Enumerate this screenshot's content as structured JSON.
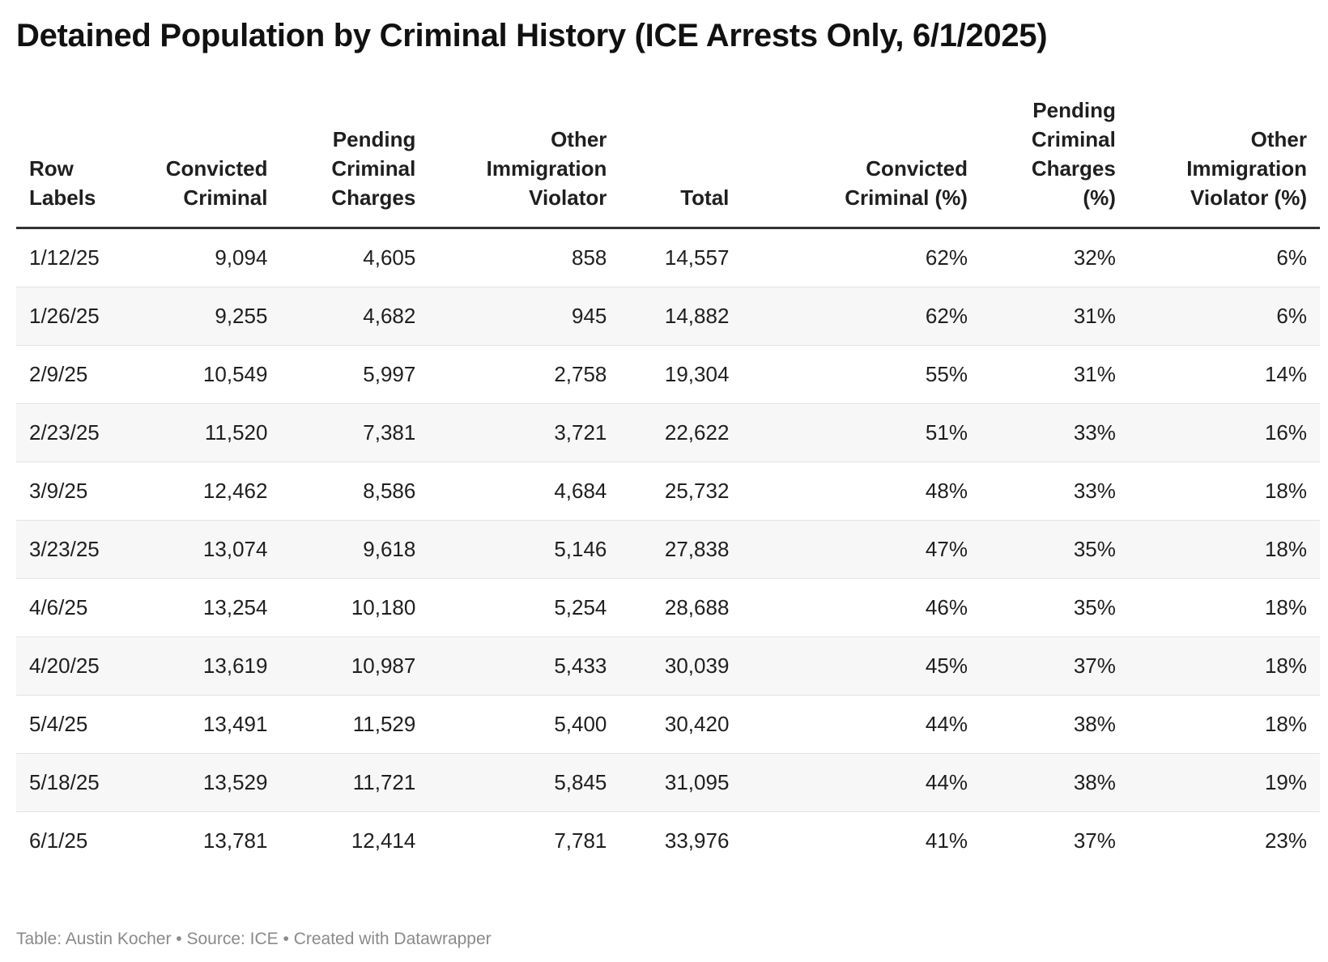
{
  "chart_data": {
    "type": "table",
    "title": "Detained Population by Criminal History (ICE Arrests Only, 6/1/2025)",
    "columns": [
      {
        "key": "label",
        "header": [
          "Row",
          "Labels"
        ],
        "align": "l"
      },
      {
        "key": "convicted",
        "header": [
          "Convicted",
          "Criminal"
        ],
        "align": "r"
      },
      {
        "key": "pending",
        "header": [
          "Pending",
          "Criminal",
          "Charges"
        ],
        "align": "r"
      },
      {
        "key": "other",
        "header": [
          "Other",
          "Immigration",
          "Violator"
        ],
        "align": "r"
      },
      {
        "key": "total",
        "header": [
          "Total"
        ],
        "align": "r"
      },
      {
        "key": "convicted_pct",
        "header": [
          "Convicted",
          "Criminal (%)"
        ],
        "align": "r"
      },
      {
        "key": "pending_pct",
        "header": [
          "Pending",
          "Criminal",
          "Charges",
          "(%)"
        ],
        "align": "r"
      },
      {
        "key": "other_pct",
        "header": [
          "Other",
          "Immigration",
          "Violator (%)"
        ],
        "align": "r"
      }
    ],
    "rows": [
      [
        "1/12/25",
        "9,094",
        "4,605",
        "858",
        "14,557",
        "62%",
        "32%",
        "6%"
      ],
      [
        "1/26/25",
        "9,255",
        "4,682",
        "945",
        "14,882",
        "62%",
        "31%",
        "6%"
      ],
      [
        "2/9/25",
        "10,549",
        "5,997",
        "2,758",
        "19,304",
        "55%",
        "31%",
        "14%"
      ],
      [
        "2/23/25",
        "11,520",
        "7,381",
        "3,721",
        "22,622",
        "51%",
        "33%",
        "16%"
      ],
      [
        "3/9/25",
        "12,462",
        "8,586",
        "4,684",
        "25,732",
        "48%",
        "33%",
        "18%"
      ],
      [
        "3/23/25",
        "13,074",
        "9,618",
        "5,146",
        "27,838",
        "47%",
        "35%",
        "18%"
      ],
      [
        "4/6/25",
        "13,254",
        "10,180",
        "5,254",
        "28,688",
        "46%",
        "35%",
        "18%"
      ],
      [
        "4/20/25",
        "13,619",
        "10,987",
        "5,433",
        "30,039",
        "45%",
        "37%",
        "18%"
      ],
      [
        "5/4/25",
        "13,491",
        "11,529",
        "5,400",
        "30,420",
        "44%",
        "38%",
        "18%"
      ],
      [
        "5/18/25",
        "13,529",
        "11,721",
        "5,845",
        "31,095",
        "44%",
        "38%",
        "19%"
      ],
      [
        "6/1/25",
        "13,781",
        "12,414",
        "7,781",
        "33,976",
        "41%",
        "37%",
        "23%"
      ]
    ]
  },
  "footer": "Table: Austin Kocher • Source: ICE • Created with Datawrapper",
  "colors": {
    "header_rule": "#333333",
    "row_stripe": "#f7f7f7",
    "row_divider": "#e2e2e2",
    "footer_text": "#8a8a8a"
  }
}
